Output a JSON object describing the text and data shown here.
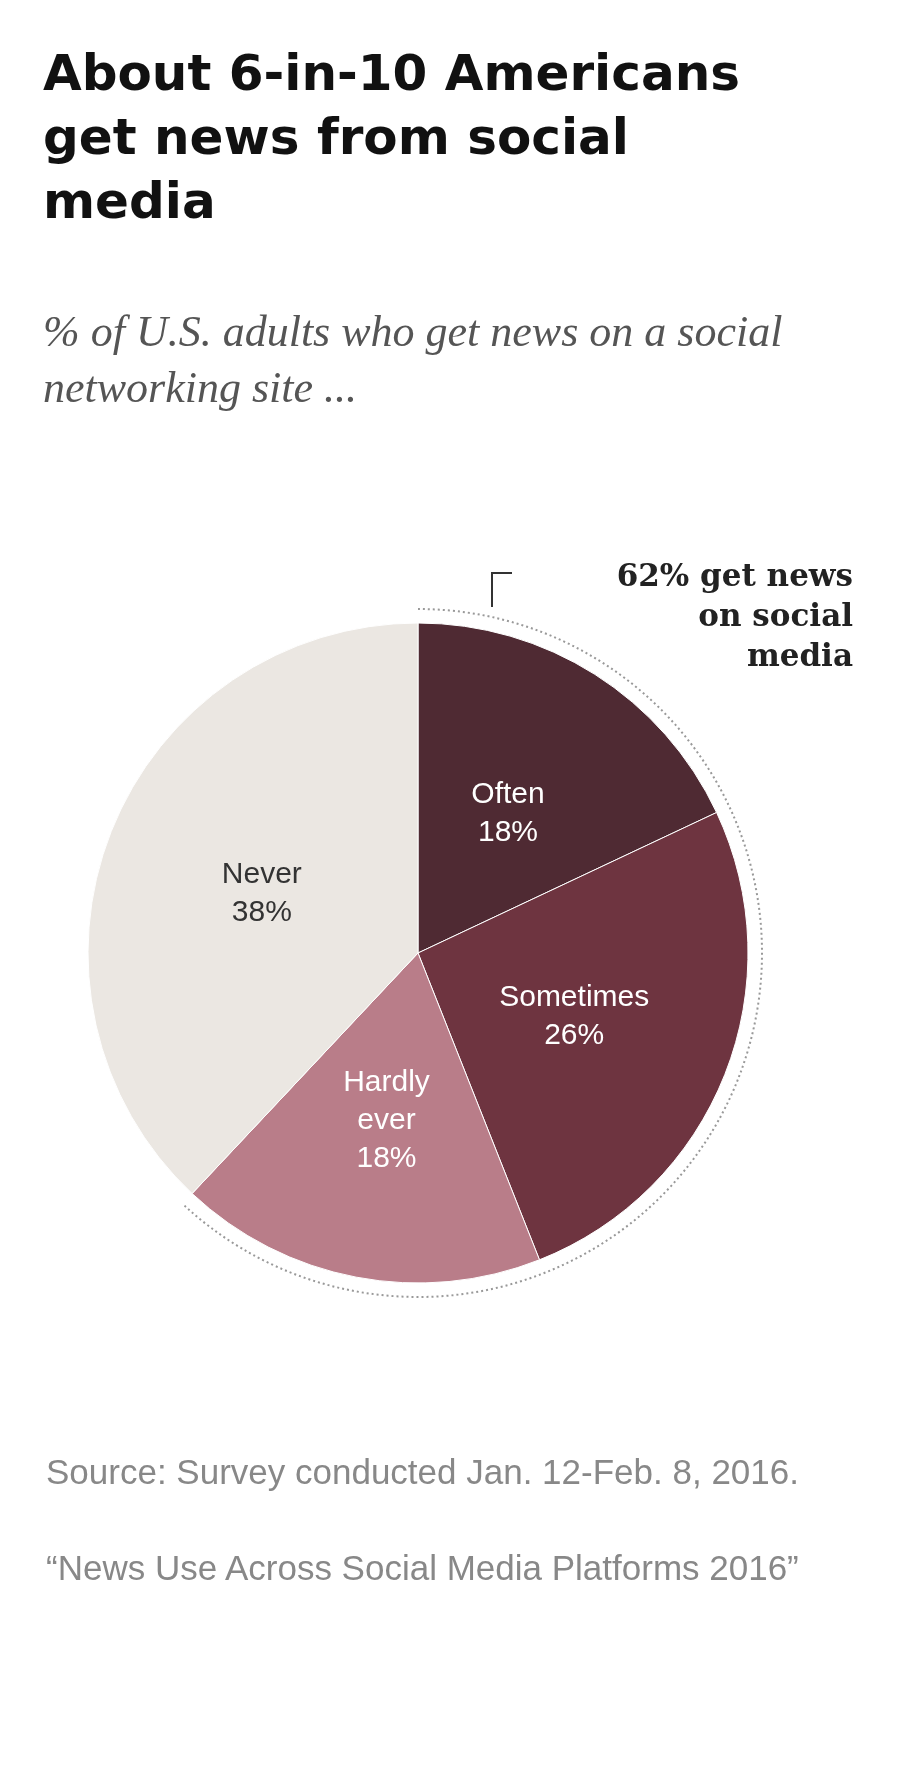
{
  "chart_data": {
    "type": "pie",
    "title": "About 6-in-10 Americans get news from social media",
    "subtitle": "% of U.S. adults who get news on a social networking site ...",
    "categories": [
      "Often",
      "Sometimes",
      "Hardly ever",
      "Never"
    ],
    "values": [
      18,
      26,
      18,
      38
    ],
    "colors": [
      "#4f2a33",
      "#6e3440",
      "#b97d89",
      "#ebe7e2"
    ],
    "value_labels": [
      "18%",
      "26%",
      "18%",
      "38%"
    ],
    "legend": false,
    "annotations": [
      "62% get news on social media",
      "Source: Survey conducted Jan. 12-Feb. 8, 2016.",
      "“News Use Across Social Media Platforms 2016”"
    ]
  }
}
